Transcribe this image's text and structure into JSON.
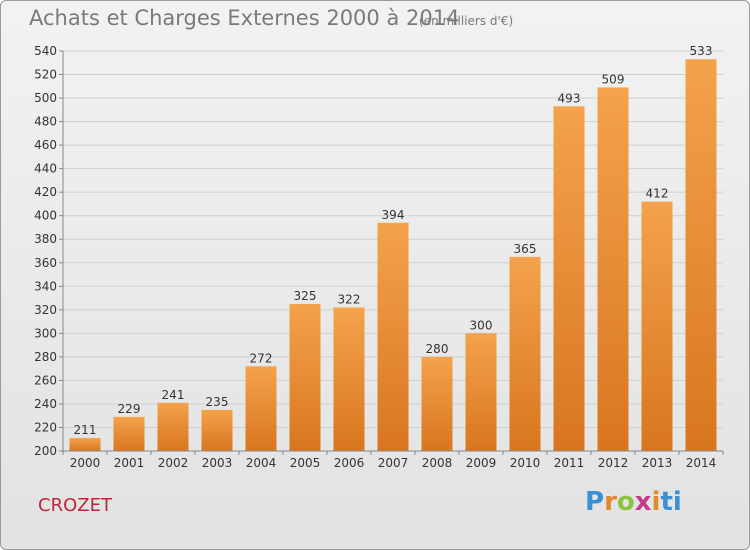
{
  "title": "Achats et Charges Externes 2000 à 2014",
  "subtitle": "(en milliers d'€)",
  "commune": "CROZET",
  "logo": [
    "P",
    "r",
    "o",
    "x",
    "i",
    "ti"
  ],
  "colors": {
    "bar_top": "#f4a24c",
    "bar_bottom": "#d8761f",
    "grid": "#d0d0d0",
    "axis": "#888888"
  },
  "chart_data": {
    "type": "bar",
    "title": "Achats et Charges Externes 2000 à 2014",
    "subtitle": "(en milliers d'€)",
    "categories": [
      "2000",
      "2001",
      "2002",
      "2003",
      "2004",
      "2005",
      "2006",
      "2007",
      "2008",
      "2009",
      "2010",
      "2011",
      "2012",
      "2013",
      "2014"
    ],
    "values": [
      211,
      229,
      241,
      235,
      272,
      325,
      322,
      394,
      280,
      300,
      365,
      493,
      509,
      412,
      533
    ],
    "ylim": [
      200,
      540
    ],
    "ytick_step": 20,
    "grid": true
  }
}
